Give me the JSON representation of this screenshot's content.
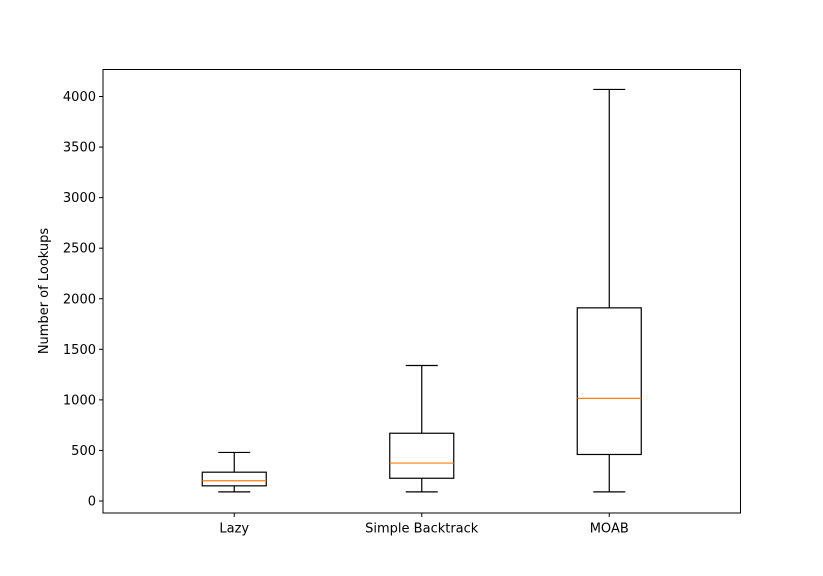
{
  "chart_data": {
    "type": "boxplot",
    "title": "",
    "xlabel": "",
    "ylabel": "Number of Lookups",
    "ylim": [
      -120,
      4270
    ],
    "yticks": [
      0,
      500,
      1000,
      1500,
      2000,
      2500,
      3000,
      3500,
      4000
    ],
    "categories": [
      "Lazy",
      "Simple Backtrack",
      "MOAB"
    ],
    "boxes": [
      {
        "label": "Lazy",
        "whisker_low": 90,
        "q1": 150,
        "median": 200,
        "q3": 285,
        "whisker_high": 480
      },
      {
        "label": "Simple Backtrack",
        "whisker_low": 90,
        "q1": 225,
        "median": 375,
        "q3": 670,
        "whisker_high": 1340
      },
      {
        "label": "MOAB",
        "whisker_low": 90,
        "q1": 460,
        "median": 1015,
        "q3": 1910,
        "whisker_high": 4070
      }
    ],
    "grid": false,
    "colors": {
      "box": "#000000",
      "median": "#ff7f0e",
      "axes": "#000000"
    }
  }
}
